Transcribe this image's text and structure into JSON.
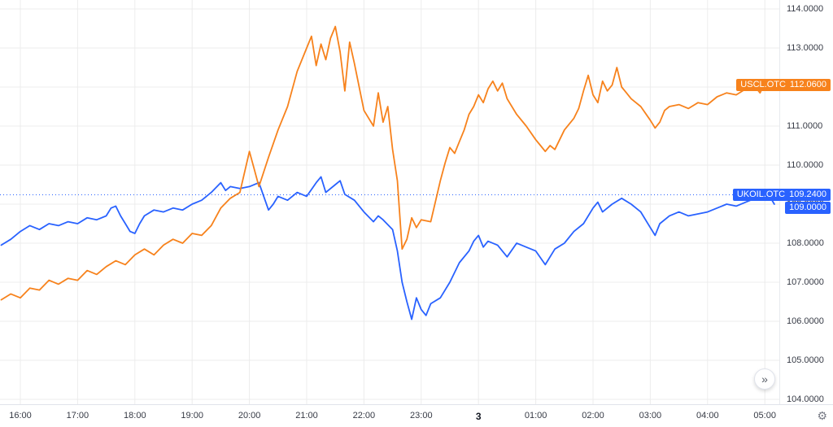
{
  "chart_data": {
    "type": "line",
    "title": "",
    "xlabel": "",
    "ylabel": "",
    "grid": true,
    "legend_position": "none",
    "x_axis": {
      "start_time": "15:40",
      "units": "minutes_from_start",
      "ticks": [
        {
          "label": "16:00",
          "t": 20
        },
        {
          "label": "17:00",
          "t": 80
        },
        {
          "label": "18:00",
          "t": 140
        },
        {
          "label": "19:00",
          "t": 200
        },
        {
          "label": "20:00",
          "t": 260
        },
        {
          "label": "21:00",
          "t": 320
        },
        {
          "label": "22:00",
          "t": 380
        },
        {
          "label": "23:00",
          "t": 440
        },
        {
          "label": "3",
          "t": 500,
          "bold": true
        },
        {
          "label": "01:00",
          "t": 560
        },
        {
          "label": "02:00",
          "t": 620
        },
        {
          "label": "03:00",
          "t": 680
        },
        {
          "label": "04:00",
          "t": 740
        },
        {
          "label": "05:00",
          "t": 800
        }
      ]
    },
    "y_axis": {
      "min": 104,
      "max": 114,
      "tick_step": 1,
      "labels": [
        "104.0000",
        "105.0000",
        "106.0000",
        "107.0000",
        "108.0000",
        "109.0000",
        "110.0000",
        "111.0000",
        "112.0000",
        "113.0000",
        "114.0000"
      ]
    },
    "baseline": {
      "value": 109.24,
      "color": "#2962ff",
      "style": "dotted"
    },
    "series": [
      {
        "name": "UKOIL.OTC",
        "color": "#2962ff",
        "last": 109.0,
        "points": [
          [
            0,
            107.95
          ],
          [
            10,
            108.1
          ],
          [
            20,
            108.3
          ],
          [
            30,
            108.45
          ],
          [
            40,
            108.35
          ],
          [
            50,
            108.5
          ],
          [
            60,
            108.45
          ],
          [
            70,
            108.55
          ],
          [
            80,
            108.5
          ],
          [
            90,
            108.65
          ],
          [
            100,
            108.6
          ],
          [
            110,
            108.7
          ],
          [
            115,
            108.9
          ],
          [
            120,
            108.95
          ],
          [
            125,
            108.7
          ],
          [
            130,
            108.5
          ],
          [
            135,
            108.3
          ],
          [
            140,
            108.25
          ],
          [
            145,
            108.5
          ],
          [
            150,
            108.7
          ],
          [
            160,
            108.85
          ],
          [
            170,
            108.8
          ],
          [
            180,
            108.9
          ],
          [
            190,
            108.85
          ],
          [
            200,
            109.0
          ],
          [
            210,
            109.1
          ],
          [
            220,
            109.3
          ],
          [
            230,
            109.55
          ],
          [
            235,
            109.35
          ],
          [
            240,
            109.45
          ],
          [
            250,
            109.4
          ],
          [
            260,
            109.45
          ],
          [
            270,
            109.55
          ],
          [
            275,
            109.2
          ],
          [
            280,
            108.85
          ],
          [
            285,
            109.0
          ],
          [
            290,
            109.2
          ],
          [
            300,
            109.1
          ],
          [
            310,
            109.3
          ],
          [
            320,
            109.2
          ],
          [
            330,
            109.55
          ],
          [
            335,
            109.7
          ],
          [
            340,
            109.3
          ],
          [
            350,
            109.5
          ],
          [
            355,
            109.6
          ],
          [
            360,
            109.25
          ],
          [
            370,
            109.1
          ],
          [
            380,
            108.8
          ],
          [
            390,
            108.55
          ],
          [
            395,
            108.7
          ],
          [
            400,
            108.6
          ],
          [
            410,
            108.35
          ],
          [
            415,
            107.8
          ],
          [
            420,
            107.0
          ],
          [
            425,
            106.5
          ],
          [
            430,
            106.05
          ],
          [
            435,
            106.6
          ],
          [
            440,
            106.3
          ],
          [
            445,
            106.15
          ],
          [
            450,
            106.45
          ],
          [
            460,
            106.6
          ],
          [
            470,
            107.0
          ],
          [
            480,
            107.5
          ],
          [
            490,
            107.8
          ],
          [
            495,
            108.05
          ],
          [
            500,
            108.2
          ],
          [
            505,
            107.9
          ],
          [
            510,
            108.05
          ],
          [
            520,
            107.95
          ],
          [
            530,
            107.65
          ],
          [
            540,
            108.0
          ],
          [
            550,
            107.9
          ],
          [
            560,
            107.8
          ],
          [
            570,
            107.45
          ],
          [
            580,
            107.85
          ],
          [
            590,
            108.0
          ],
          [
            600,
            108.3
          ],
          [
            610,
            108.5
          ],
          [
            620,
            108.9
          ],
          [
            625,
            109.05
          ],
          [
            630,
            108.8
          ],
          [
            640,
            109.0
          ],
          [
            650,
            109.15
          ],
          [
            660,
            109.0
          ],
          [
            670,
            108.8
          ],
          [
            680,
            108.4
          ],
          [
            685,
            108.2
          ],
          [
            690,
            108.5
          ],
          [
            700,
            108.7
          ],
          [
            710,
            108.8
          ],
          [
            720,
            108.7
          ],
          [
            730,
            108.75
          ],
          [
            740,
            108.8
          ],
          [
            750,
            108.9
          ],
          [
            760,
            109.0
          ],
          [
            770,
            108.95
          ],
          [
            780,
            109.05
          ],
          [
            790,
            109.15
          ],
          [
            795,
            109.3
          ],
          [
            800,
            109.1
          ],
          [
            805,
            109.2
          ],
          [
            810,
            109.0
          ]
        ]
      },
      {
        "name": "USCL.OTC",
        "color": "#f7821c",
        "last": 112.06,
        "points": [
          [
            0,
            106.55
          ],
          [
            10,
            106.7
          ],
          [
            20,
            106.6
          ],
          [
            30,
            106.85
          ],
          [
            40,
            106.8
          ],
          [
            50,
            107.05
          ],
          [
            60,
            106.95
          ],
          [
            70,
            107.1
          ],
          [
            80,
            107.05
          ],
          [
            90,
            107.3
          ],
          [
            100,
            107.2
          ],
          [
            110,
            107.4
          ],
          [
            120,
            107.55
          ],
          [
            130,
            107.45
          ],
          [
            140,
            107.7
          ],
          [
            150,
            107.85
          ],
          [
            160,
            107.7
          ],
          [
            170,
            107.95
          ],
          [
            180,
            108.1
          ],
          [
            190,
            108.0
          ],
          [
            200,
            108.25
          ],
          [
            210,
            108.2
          ],
          [
            220,
            108.45
          ],
          [
            230,
            108.9
          ],
          [
            240,
            109.15
          ],
          [
            250,
            109.3
          ],
          [
            260,
            110.35
          ],
          [
            265,
            109.9
          ],
          [
            270,
            109.45
          ],
          [
            280,
            110.2
          ],
          [
            290,
            110.9
          ],
          [
            300,
            111.5
          ],
          [
            310,
            112.4
          ],
          [
            320,
            113.0
          ],
          [
            325,
            113.3
          ],
          [
            330,
            112.55
          ],
          [
            335,
            113.1
          ],
          [
            340,
            112.7
          ],
          [
            345,
            113.25
          ],
          [
            350,
            113.55
          ],
          [
            355,
            112.9
          ],
          [
            360,
            111.9
          ],
          [
            365,
            113.15
          ],
          [
            370,
            112.6
          ],
          [
            380,
            111.4
          ],
          [
            390,
            111.0
          ],
          [
            395,
            111.85
          ],
          [
            400,
            111.1
          ],
          [
            405,
            111.5
          ],
          [
            410,
            110.4
          ],
          [
            415,
            109.6
          ],
          [
            420,
            107.85
          ],
          [
            425,
            108.1
          ],
          [
            430,
            108.65
          ],
          [
            435,
            108.4
          ],
          [
            440,
            108.6
          ],
          [
            450,
            108.55
          ],
          [
            460,
            109.6
          ],
          [
            465,
            110.05
          ],
          [
            470,
            110.45
          ],
          [
            475,
            110.3
          ],
          [
            480,
            110.6
          ],
          [
            485,
            110.9
          ],
          [
            490,
            111.3
          ],
          [
            495,
            111.5
          ],
          [
            500,
            111.8
          ],
          [
            505,
            111.6
          ],
          [
            510,
            111.95
          ],
          [
            515,
            112.15
          ],
          [
            520,
            111.9
          ],
          [
            525,
            112.1
          ],
          [
            530,
            111.7
          ],
          [
            540,
            111.3
          ],
          [
            550,
            111.0
          ],
          [
            560,
            110.65
          ],
          [
            565,
            110.5
          ],
          [
            570,
            110.35
          ],
          [
            575,
            110.5
          ],
          [
            580,
            110.4
          ],
          [
            590,
            110.9
          ],
          [
            600,
            111.2
          ],
          [
            605,
            111.45
          ],
          [
            610,
            111.9
          ],
          [
            615,
            112.3
          ],
          [
            620,
            111.8
          ],
          [
            625,
            111.6
          ],
          [
            630,
            112.15
          ],
          [
            635,
            111.9
          ],
          [
            640,
            112.05
          ],
          [
            645,
            112.5
          ],
          [
            650,
            112.0
          ],
          [
            655,
            111.85
          ],
          [
            660,
            111.7
          ],
          [
            670,
            111.5
          ],
          [
            680,
            111.15
          ],
          [
            685,
            110.95
          ],
          [
            690,
            111.1
          ],
          [
            695,
            111.4
          ],
          [
            700,
            111.5
          ],
          [
            710,
            111.55
          ],
          [
            720,
            111.45
          ],
          [
            730,
            111.6
          ],
          [
            740,
            111.55
          ],
          [
            750,
            111.75
          ],
          [
            760,
            111.85
          ],
          [
            770,
            111.8
          ],
          [
            780,
            111.95
          ],
          [
            790,
            112.0
          ],
          [
            795,
            111.85
          ],
          [
            800,
            112.1
          ],
          [
            805,
            111.95
          ],
          [
            810,
            112.06
          ]
        ]
      }
    ]
  },
  "price_labels": {
    "uscl": {
      "symbol": "USCL.OTC",
      "price": "112.0600",
      "value": 112.06,
      "color": "#f7821c"
    },
    "ukoil": {
      "symbol": "UKOIL.OTC",
      "price": "109.2400",
      "value": 109.24,
      "color": "#2962ff"
    },
    "ukoil_last": {
      "price": "109.0000",
      "value": 109.0,
      "color": "#2962ff"
    }
  },
  "controls": {
    "scroll_to_realtime": "»",
    "settings_icon": "⚙"
  },
  "style": {
    "grid_color": "#ececec",
    "axis_text_color": "#363a45",
    "accent_orange": "#f7821c",
    "accent_blue": "#2962ff"
  }
}
